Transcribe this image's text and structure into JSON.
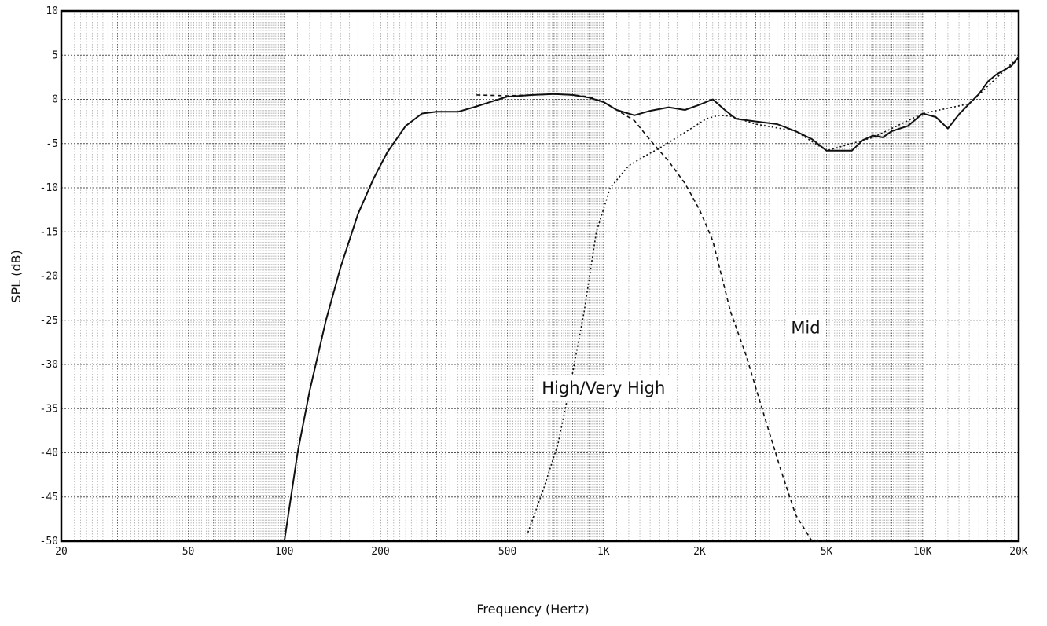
{
  "chart_data": {
    "type": "line",
    "title": "",
    "xlabel": "Frequency (Hertz)",
    "ylabel": "SPL (dB)",
    "x_scale": "log",
    "xlim": [
      20,
      20000
    ],
    "ylim": [
      -50,
      10
    ],
    "grid": true,
    "x_ticks": [
      {
        "value": 20,
        "label": "20"
      },
      {
        "value": 50,
        "label": "50"
      },
      {
        "value": 100,
        "label": "100"
      },
      {
        "value": 200,
        "label": "200"
      },
      {
        "value": 500,
        "label": "500"
      },
      {
        "value": 1000,
        "label": "1K"
      },
      {
        "value": 2000,
        "label": "2K"
      },
      {
        "value": 5000,
        "label": "5K"
      },
      {
        "value": 10000,
        "label": "10K"
      },
      {
        "value": 20000,
        "label": "20K"
      }
    ],
    "y_ticks": [
      {
        "value": 10,
        "label": "10"
      },
      {
        "value": 5,
        "label": "5"
      },
      {
        "value": 0,
        "label": "0"
      },
      {
        "value": -5,
        "label": "-5"
      },
      {
        "value": -10,
        "label": "-10"
      },
      {
        "value": -15,
        "label": "-15"
      },
      {
        "value": -20,
        "label": "-20"
      },
      {
        "value": -25,
        "label": "-25"
      },
      {
        "value": -30,
        "label": "-30"
      },
      {
        "value": -35,
        "label": "-35"
      },
      {
        "value": -40,
        "label": "-40"
      },
      {
        "value": -45,
        "label": "-45"
      },
      {
        "value": -50,
        "label": "-50"
      }
    ],
    "series": [
      {
        "style": "solid",
        "x": [
          100,
          110,
          120,
          135,
          150,
          170,
          190,
          210,
          240,
          270,
          300,
          350,
          400,
          450,
          500,
          550,
          600,
          700,
          800,
          900,
          1000,
          1100,
          1250,
          1400,
          1600,
          1800,
          2000,
          2200,
          2400,
          2600,
          3000,
          3500,
          4000,
          4500,
          5000,
          5500,
          6000,
          6500,
          7000,
          7500,
          8000,
          9000,
          10000,
          11000,
          12000,
          13000,
          14000,
          15000,
          16000,
          17000,
          18000,
          19000,
          20000
        ],
        "y": [
          -50,
          -40,
          -33,
          -25,
          -19,
          -13,
          -9,
          -6,
          -3,
          -1.6,
          -1.4,
          -1.4,
          -0.8,
          -0.2,
          0.3,
          0.4,
          0.5,
          0.6,
          0.5,
          0.2,
          -0.3,
          -1.2,
          -1.8,
          -1.3,
          -0.9,
          -1.2,
          -0.6,
          0,
          -1.2,
          -2.2,
          -2.5,
          -2.8,
          -3.6,
          -4.5,
          -5.8,
          -5.8,
          -5.8,
          -4.6,
          -4.1,
          -4.3,
          -3.6,
          -3.0,
          -1.6,
          -2.0,
          -3.3,
          -1.7,
          -0.5,
          0.6,
          2.0,
          2.8,
          3.3,
          3.8,
          4.8
        ]
      },
      {
        "style": "dashed",
        "x": [
          400,
          500,
          600,
          700,
          800,
          900,
          1000,
          1100,
          1250,
          1400,
          1600,
          1800,
          2000,
          2200,
          2500,
          2800,
          3200,
          3600,
          4000,
          4500,
          5000
        ],
        "y": [
          0.5,
          0.4,
          0.5,
          0.6,
          0.5,
          0.3,
          -0.3,
          -1.2,
          -2.4,
          -4.6,
          -7,
          -9.5,
          -12.5,
          -16,
          -24,
          -29,
          -36,
          -42,
          -47,
          -50,
          -50
        ]
      },
      {
        "style": "dotted",
        "x": [
          580,
          650,
          720,
          800,
          870,
          950,
          1050,
          1200,
          1350,
          1500,
          1700,
          1900,
          2100,
          2300,
          2500,
          3000,
          4000,
          5000,
          7000,
          10000,
          14000,
          20000
        ],
        "y": [
          -49,
          -44,
          -39,
          -31,
          -24,
          -15,
          -10,
          -7.5,
          -6.4,
          -5.5,
          -4.3,
          -3.2,
          -2.2,
          -1.8,
          -1.9,
          -2.8,
          -3.6,
          -5.8,
          -4.3,
          -1.6,
          -0.5,
          4.8
        ]
      }
    ],
    "annotations": [
      {
        "text": "Mid",
        "x": 4300,
        "y": -26.5
      },
      {
        "text": "High/Very High",
        "x": 1000,
        "y": -33.3
      }
    ]
  }
}
